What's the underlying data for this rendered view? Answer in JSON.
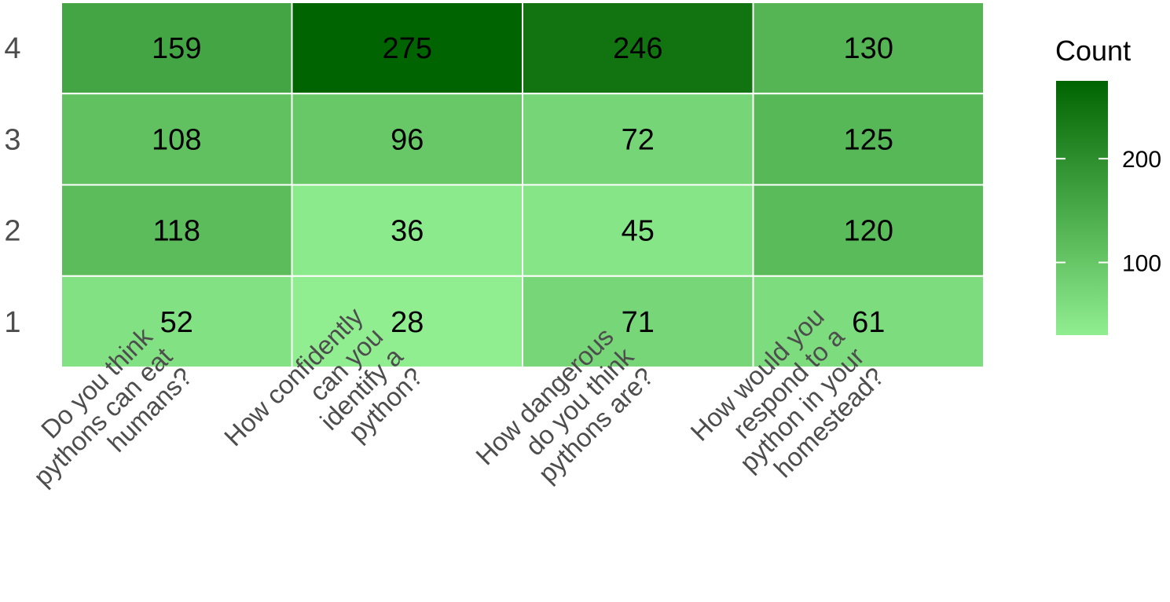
{
  "chart_data": {
    "type": "heatmap",
    "x_categories": [
      [
        "Do you think",
        "pythons can eat",
        "humans?"
      ],
      [
        "How confidently",
        "can you",
        "identify a",
        "python?"
      ],
      [
        "How dangerous",
        "do you think",
        "pythons are?"
      ],
      [
        "How would you",
        "respond to a",
        "python in your",
        "homestead?"
      ]
    ],
    "y_categories": [
      "1",
      "2",
      "3",
      "4"
    ],
    "values": [
      [
        52,
        28,
        71,
        61
      ],
      [
        118,
        36,
        45,
        120
      ],
      [
        108,
        96,
        72,
        125
      ],
      [
        159,
        275,
        246,
        130
      ]
    ],
    "color_low": "#90ee90",
    "color_high": "#006400",
    "value_range": [
      28,
      275
    ],
    "legend": {
      "title": "Count",
      "ticks": [
        100,
        200
      ],
      "placement": "right"
    }
  }
}
